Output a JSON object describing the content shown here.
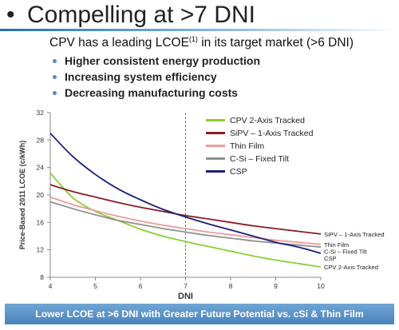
{
  "slide": {
    "title": "Compelling at >7 DNI",
    "headline_before": "CPV has a leading LCOE",
    "headline_sup": "(1)",
    "headline_after": " in its target market (>6 DNI)",
    "bullets": [
      "Higher consistent energy production",
      "Increasing system efficiency",
      "Decreasing manufacturing costs"
    ],
    "footer": "Lower LCOE at >6 DNI with Greater Future Potential vs. cSi & Thin Film"
  },
  "colors": {
    "title_rule": "#1f6fb0",
    "bullet": "#4f8cc0",
    "banner": "#4a83bd",
    "threshold_line": "#777777"
  },
  "chart_data": {
    "type": "line",
    "title": "",
    "xlabel": "DNI",
    "ylabel": "Price-Based 2011 LCOE (c/kWh)",
    "xlim": [
      4,
      10
    ],
    "ylim": [
      8,
      32
    ],
    "x_ticks": [
      4,
      5,
      6,
      7,
      8,
      9,
      10
    ],
    "y_ticks": [
      8,
      12,
      16,
      20,
      24,
      28,
      32
    ],
    "grid": false,
    "legend_position": "top-right",
    "vertical_marker_x": 7,
    "x": [
      4,
      4.5,
      5,
      5.5,
      6,
      6.5,
      7,
      7.5,
      8,
      8.5,
      9,
      9.5,
      10
    ],
    "series": [
      {
        "name": "CPV 2-Axis Tracked",
        "end_label": "CPV 2-Axis Tracked",
        "color": "#8ccf2e",
        "values": [
          23.2,
          19.6,
          17.6,
          16.3,
          15.0,
          14.0,
          13.2,
          12.5,
          11.8,
          11.1,
          10.5,
          10.0,
          9.5
        ]
      },
      {
        "name": "SiPV – 1-Axis Tracked",
        "end_label": "SiPV – 1-Axis Tracked",
        "color": "#8b1c24",
        "values": [
          21.5,
          20.5,
          19.7,
          18.9,
          18.2,
          17.6,
          17.0,
          16.5,
          16.0,
          15.5,
          15.1,
          14.7,
          14.3
        ]
      },
      {
        "name": "Thin Film",
        "end_label": "Thin Film",
        "color": "#ee9a9a",
        "values": [
          19.7,
          18.6,
          17.7,
          16.9,
          16.2,
          15.6,
          15.1,
          14.6,
          14.2,
          13.8,
          13.4,
          13.1,
          12.8
        ]
      },
      {
        "name": "C-Si – Fixed Tilt",
        "end_label": "C-Si – Fixed Tilt",
        "color": "#909090",
        "values": [
          19.0,
          18.0,
          17.1,
          16.3,
          15.7,
          15.1,
          14.6,
          14.1,
          13.7,
          13.3,
          13.0,
          12.7,
          12.4
        ]
      },
      {
        "name": "CSP",
        "end_label": "CSP",
        "color": "#1b1f7a",
        "values": [
          29.0,
          25.6,
          23.0,
          20.9,
          19.3,
          17.9,
          16.8,
          15.8,
          14.9,
          14.0,
          13.1,
          12.4,
          11.5
        ]
      }
    ]
  }
}
